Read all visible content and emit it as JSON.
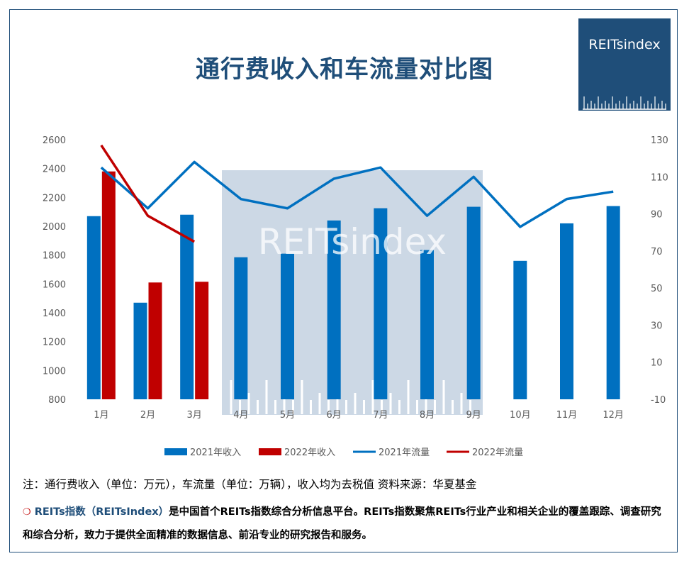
{
  "title": "通行费收入和车流量对比图",
  "logo": {
    "text": "REITsindex",
    "watermark": "REITsindex"
  },
  "note": "注：通行费收入（单位：万元），车流量（单位：万辆），收入均为去税值  资料来源：华夏基金",
  "description": {
    "brand": "REITs指数（REITsIndex）",
    "text": "是中国首个REITs指数综合分析信息平台。REITs指数聚焦REITs行业产业和相关企业的覆盖跟踪、调查研究和综合分析，致力于提供全面精准的数据信息、前沿专业的研究报告和服务。"
  },
  "colors": {
    "blue": "#0070c0",
    "red": "#c00000",
    "navy": "#1f4e79"
  },
  "chart_data": {
    "type": "bar",
    "categories": [
      "1月",
      "2月",
      "3月",
      "4月",
      "5月",
      "6月",
      "7月",
      "8月",
      "9月",
      "10月",
      "11月",
      "12月"
    ],
    "left_axis": {
      "min": 800,
      "max": 2600,
      "ticks": [
        800,
        1000,
        1200,
        1400,
        1600,
        1800,
        2000,
        2200,
        2400,
        2600
      ]
    },
    "right_axis": {
      "min": -10,
      "max": 130,
      "ticks": [
        -10,
        10,
        30,
        50,
        70,
        90,
        110,
        130
      ]
    },
    "series": [
      {
        "name": "2021年收入",
        "kind": "bar",
        "axis": "left",
        "values": [
          2070,
          1470,
          2080,
          1785,
          1810,
          2040,
          2125,
          1835,
          2135,
          1760,
          2020,
          2140
        ]
      },
      {
        "name": "2022年收入",
        "kind": "bar",
        "axis": "left",
        "values": [
          2380,
          1610,
          1615,
          null,
          null,
          null,
          null,
          null,
          null,
          null,
          null,
          null
        ]
      },
      {
        "name": "2021年流量",
        "kind": "line",
        "axis": "right",
        "values": [
          115,
          93,
          118,
          98,
          93,
          109,
          115,
          89,
          110,
          83,
          98,
          102
        ]
      },
      {
        "name": "2022年流量",
        "kind": "line",
        "axis": "right",
        "values": [
          127,
          89,
          75,
          null,
          null,
          null,
          null,
          null,
          null,
          null,
          null,
          null
        ]
      }
    ],
    "legend_position": "bottom",
    "grid": false
  }
}
